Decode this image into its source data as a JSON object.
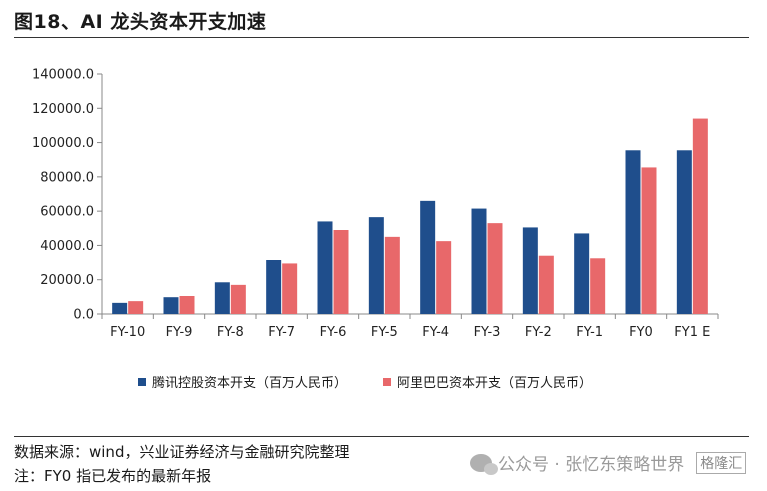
{
  "title": "图18、AI 龙头资本开支加速",
  "source": "数据来源：wind，兴业证券经济与金融研究院整理",
  "note": "注：FY0 指已发布的最新年报",
  "watermark": {
    "text": "公众号 · 张忆东策略世界",
    "logo_text": "格隆汇"
  },
  "chart_data": {
    "type": "bar",
    "title": "",
    "xlabel": "",
    "ylabel": "",
    "ylim": [
      0,
      140000
    ],
    "yticks": [
      0,
      20000,
      40000,
      60000,
      80000,
      100000,
      120000,
      140000
    ],
    "ytick_labels": [
      "0.0",
      "20000.0",
      "40000.0",
      "60000.0",
      "80000.0",
      "100000.0",
      "120000.0",
      "140000.0"
    ],
    "categories": [
      "FY-10",
      "FY-9",
      "FY-8",
      "FY-7",
      "FY-6",
      "FY-5",
      "FY-4",
      "FY-3",
      "FY-2",
      "FY-1",
      "FY0",
      "FY1 E"
    ],
    "legend_position": "bottom",
    "grid": false,
    "series": [
      {
        "name": "腾讯控股资本开支（百万人民币）",
        "color": "#1f4e8c",
        "values": [
          6500,
          9800,
          18500,
          31500,
          54000,
          56500,
          66000,
          61500,
          50500,
          47000,
          95500,
          95500
        ]
      },
      {
        "name": "阿里巴巴资本开支（百万人民币）",
        "color": "#e8686a",
        "values": [
          7500,
          10500,
          17000,
          29500,
          49000,
          45000,
          42500,
          53000,
          34000,
          32500,
          85500,
          114000
        ]
      }
    ]
  }
}
